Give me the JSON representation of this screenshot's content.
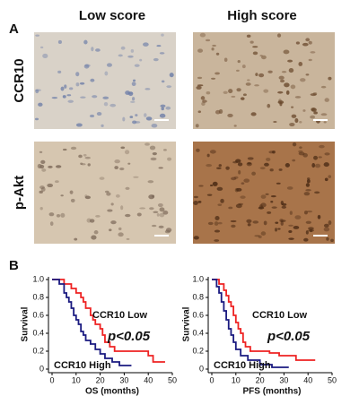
{
  "figure": {
    "panel_a": "A",
    "panel_b": "B",
    "columns": [
      "Low score",
      "High score"
    ],
    "rows": [
      "CCR10",
      "p-Akt"
    ]
  },
  "chart_data": [
    {
      "type": "step",
      "x_label": "OS (months)",
      "y_label": "Survival",
      "annotation": "p<0.05",
      "xlim": [
        0,
        50
      ],
      "xticks": [
        0,
        10,
        20,
        30,
        40,
        50
      ],
      "ylim": [
        0,
        1
      ],
      "yticks": [
        0,
        0.2,
        0.4,
        0.6,
        0.8,
        {
          "value": 1,
          "label": "1.0"
        }
      ],
      "series": [
        {
          "name": "CCR10 Low",
          "color": "#ee2222",
          "x": [
            0,
            5,
            8,
            10,
            12,
            13,
            14,
            16,
            17,
            18,
            20,
            21,
            22,
            24,
            26,
            40,
            42,
            47
          ],
          "values": [
            1,
            0.95,
            0.9,
            0.85,
            0.8,
            0.75,
            0.68,
            0.6,
            0.55,
            0.5,
            0.45,
            0.38,
            0.3,
            0.25,
            0.2,
            0.15,
            0.08,
            0.08
          ]
        },
        {
          "name": "CCR10 High",
          "color": "#1a1a80",
          "x": [
            0,
            3,
            5,
            6,
            7,
            8,
            9,
            10,
            11,
            12,
            13,
            14,
            16,
            18,
            20,
            22,
            25,
            28,
            33
          ],
          "values": [
            1,
            0.95,
            0.85,
            0.8,
            0.75,
            0.68,
            0.6,
            0.55,
            0.5,
            0.42,
            0.38,
            0.32,
            0.28,
            0.22,
            0.17,
            0.12,
            0.08,
            0.04,
            0.04
          ]
        }
      ]
    },
    {
      "type": "step",
      "x_label": "PFS (months)",
      "y_label": "Survival",
      "annotation": "p<0.05",
      "xlim": [
        0,
        50
      ],
      "xticks": [
        0,
        10,
        20,
        30,
        40,
        50
      ],
      "ylim": [
        0,
        1
      ],
      "yticks": [
        0,
        0.2,
        0.4,
        0.6,
        0.8,
        {
          "value": 1,
          "label": "1.0"
        }
      ],
      "series": [
        {
          "name": "CCR10 Low",
          "color": "#ee2222",
          "x": [
            0,
            3,
            5,
            6,
            7,
            8,
            9,
            10,
            11,
            12,
            13,
            14,
            16,
            24,
            28,
            35,
            43
          ],
          "values": [
            1,
            0.95,
            0.88,
            0.82,
            0.75,
            0.7,
            0.6,
            0.52,
            0.45,
            0.4,
            0.3,
            0.25,
            0.2,
            0.18,
            0.15,
            0.1,
            0.1
          ]
        },
        {
          "name": "CCR10 High",
          "color": "#1a1a80",
          "x": [
            0,
            2,
            3,
            4,
            5,
            6,
            7,
            8,
            9,
            10,
            12,
            15,
            20,
            25,
            32
          ],
          "values": [
            1,
            0.92,
            0.85,
            0.75,
            0.65,
            0.55,
            0.45,
            0.38,
            0.3,
            0.22,
            0.15,
            0.1,
            0.05,
            0.02,
            0.02
          ]
        }
      ]
    }
  ]
}
